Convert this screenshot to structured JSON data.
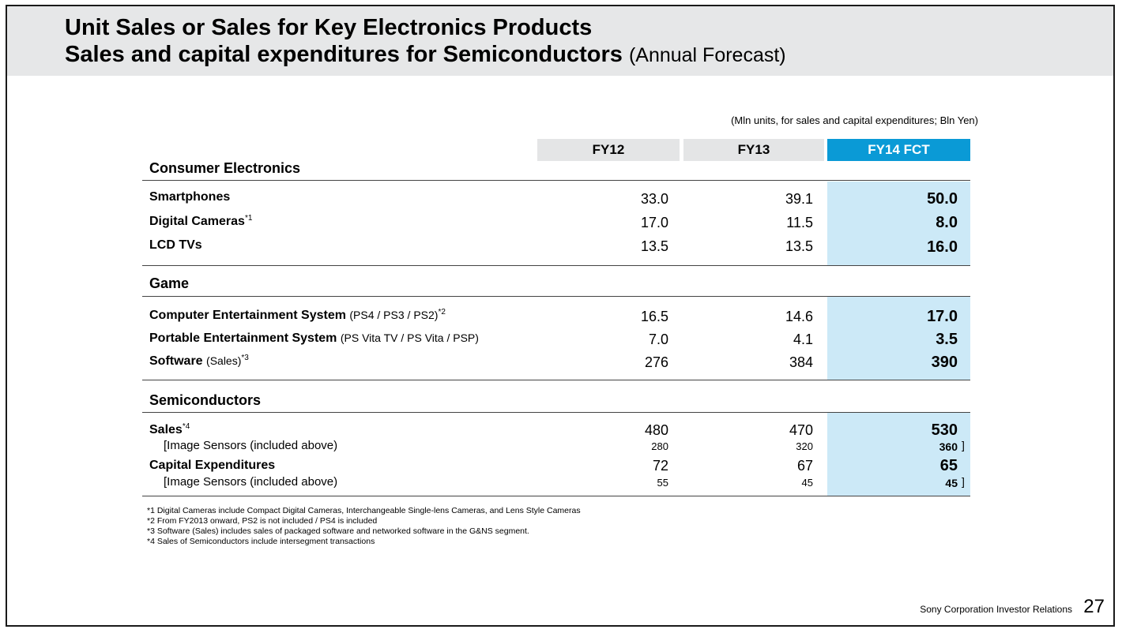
{
  "title": {
    "line1": "Unit Sales or Sales for Key Electronics Products",
    "line2_main": "Sales and capital expenditures for Semiconductors",
    "line2_sub": "(Annual Forecast)"
  },
  "unit_note": "(Mln units, for sales and capital expenditures; Bln Yen)",
  "columns": {
    "fy12": "FY12",
    "fy13": "FY13",
    "fy14": "FY14 FCT"
  },
  "colors": {
    "header_bg": "#e6e7e8",
    "fcst_header": "#0a9ad6",
    "fcst_column": "#cce9f7",
    "fy_header": "#e4e5e6"
  },
  "sections": {
    "consumer": "Consumer Electronics",
    "game": "Game",
    "semi": "Semiconductors"
  },
  "rows": {
    "smartphones": {
      "label": "Smartphones",
      "fy12": "33.0",
      "fy13": "39.1",
      "fy14": "50.0"
    },
    "cameras": {
      "label": "Digital Cameras",
      "note": "*1",
      "fy12": "17.0",
      "fy13": "11.5",
      "fy14": "8.0"
    },
    "lcd": {
      "label": "LCD TVs",
      "fy12": "13.5",
      "fy13": "13.5",
      "fy14": "16.0"
    },
    "ces": {
      "label": "Computer Entertainment System",
      "paren": "(PS4 / PS3 / PS2)",
      "note": "*2",
      "fy12": "16.5",
      "fy13": "14.6",
      "fy14": "17.0"
    },
    "pes": {
      "label": "Portable Entertainment System",
      "paren": "(PS Vita TV / PS Vita / PSP)",
      "fy12": "7.0",
      "fy13": "4.1",
      "fy14": "3.5"
    },
    "software": {
      "label": "Software",
      "paren": "(Sales)",
      "note": "*3",
      "fy12": "276",
      "fy13": "384",
      "fy14": "390"
    },
    "sales": {
      "label": "Sales",
      "note": "*4",
      "fy12": "480",
      "fy13": "470",
      "fy14": "530"
    },
    "sales_img": {
      "label": "[Image Sensors   (included above)",
      "fy12": "280",
      "fy13": "320",
      "fy14": "360",
      "close": "]"
    },
    "capex": {
      "label": "Capital Expenditures",
      "fy12": "72",
      "fy13": "67",
      "fy14": "65"
    },
    "capex_img": {
      "label": "[Image Sensors  (included above)",
      "fy12": "55",
      "fy13": "45",
      "fy14": "45",
      "close": "]"
    }
  },
  "footnotes": [
    "*1 Digital Cameras include Compact Digital Cameras, Interchangeable Single-lens Cameras, and Lens Style Cameras",
    "*2 From FY2013  onward, PS2 is not included / PS4 is included",
    "*3 Software (Sales) includes sales of packaged software and networked software in the G&NS segment.",
    "*4 Sales of Semiconductors include intersegment transactions"
  ],
  "footer": {
    "company": "Sony Corporation  Investor Relations",
    "page": "27"
  }
}
